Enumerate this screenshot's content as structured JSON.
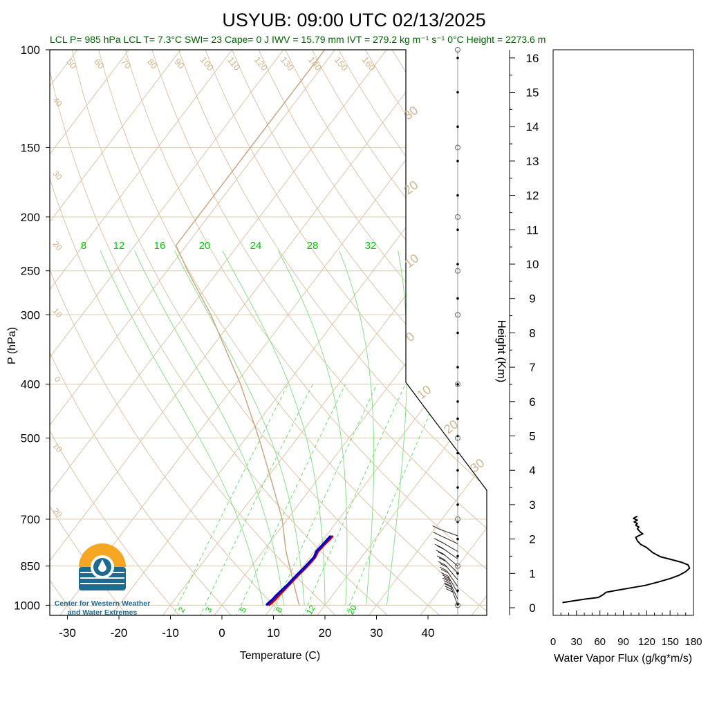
{
  "title": "USYUB: 09:00 UTC 02/13/2025",
  "info_line": "LCL P= 985 hPa  LCL T= 7.3°C  SWI= 23  Cape= 0 J  IWV = 15.79 mm  IVT = 279.2 kg m⁻¹ s⁻¹  0°C Height = 2273.6 m",
  "colors": {
    "info_text": "#006400",
    "dry_adiabat": "#d2b48c",
    "mixing_ratio": "#00cc00",
    "temperature": "#cc0000",
    "dewpoint": "#0000cc",
    "parcel": "#c8a882",
    "frame": "#000000"
  },
  "logo": {
    "line1": "Center for Western Weather",
    "line2": "and Water Extremes",
    "text_color": "#1f6b8f",
    "sun_color": "#f5a623",
    "water_color": "#1f6b8f"
  },
  "chart_data": [
    {
      "type": "skew-t",
      "xlabel": "Temperature (C)",
      "ylabel": "P (hPa)",
      "xlim": [
        -35,
        50
      ],
      "ylim_pressure": [
        1050,
        100
      ],
      "y_log_scale": true,
      "x_ticks": [
        -30,
        -20,
        -10,
        0,
        10,
        20,
        30,
        40
      ],
      "pressure_levels": [
        100,
        150,
        200,
        250,
        300,
        400,
        500,
        700,
        850,
        1000
      ],
      "height_axis": {
        "label": "Height (Km)",
        "ticks": [
          0,
          1,
          2,
          3,
          4,
          5,
          6,
          7,
          8,
          9,
          10,
          11,
          12,
          13,
          14,
          15,
          16
        ]
      },
      "dry_adiabat_labels_top": [
        "50",
        "60",
        "70",
        "80",
        "90",
        "100",
        "110",
        "120",
        "130",
        "140",
        "150",
        "160"
      ],
      "dry_adiabat_labels_left": [
        "40",
        "30",
        "20",
        "10",
        "0",
        "10",
        "20"
      ],
      "isotherm_labels_right": [
        "30",
        "20",
        "10",
        "0",
        "10",
        "20",
        "30"
      ],
      "mixing_ratio_labels_top": [
        "8",
        "12",
        "16",
        "20",
        "24",
        "28",
        "32"
      ],
      "mixing_ratio_labels_bottom": [
        "2",
        "3",
        "5",
        "8",
        "12",
        "20"
      ],
      "temperature_profile": {
        "name": "Temperature",
        "pressure": [
          1000,
          990,
          975,
          960,
          940,
          920,
          900,
          880,
          860,
          840,
          820,
          800,
          780,
          760,
          750
        ],
        "values": [
          9.0,
          9.3,
          9.5,
          9.6,
          9.8,
          10.0,
          10.2,
          10.4,
          10.7,
          10.9,
          11.0,
          10.7,
          10.9,
          11.2,
          11.3
        ]
      },
      "dewpoint_profile": {
        "name": "Dewpoint",
        "pressure": [
          1000,
          990,
          975,
          960,
          940,
          920,
          900,
          880,
          860,
          840,
          820,
          800,
          780,
          760,
          750
        ],
        "values": [
          8.6,
          8.7,
          9.0,
          9.1,
          9.4,
          9.7,
          9.9,
          10.1,
          10.4,
          10.6,
          10.8,
          10.4,
          10.6,
          10.8,
          10.9
        ]
      },
      "parcel_path": {
        "name": "Parcel",
        "pressure": [
          1000,
          900,
          800,
          700,
          600,
          500,
          400,
          300,
          250,
          225,
          200,
          150,
          100
        ],
        "values": [
          15.0,
          10.0,
          4.5,
          -1.0,
          -8.5,
          -17.5,
          -29.0,
          -45.0,
          -56.0,
          -62.0,
          -62.0,
          -62.0,
          -62.0
        ]
      },
      "wind_barbs": {
        "pressure": [
          1000,
          975,
          950,
          925,
          900,
          875,
          850,
          825,
          800,
          775,
          750
        ],
        "speed_kt": [
          25,
          25,
          25,
          20,
          20,
          20,
          15,
          15,
          15,
          10,
          10
        ],
        "direction_deg": [
          200,
          205,
          210,
          215,
          220,
          225,
          230,
          235,
          240,
          245,
          250
        ]
      },
      "height_markers_km": [
        0.1,
        0.5,
        1.0,
        1.5,
        2.0,
        2.5,
        3.0,
        3.5,
        4.0,
        4.5,
        5.0,
        5.5,
        6.0,
        6.5,
        7.0,
        8.0,
        9.0,
        10.0,
        11.0,
        12.0,
        13.0,
        14.0,
        15.0,
        16.0
      ]
    },
    {
      "type": "line",
      "xlabel": "Water Vapor Flux (g/kg*m/s)",
      "ylabel": "",
      "xlim": [
        0,
        180
      ],
      "ylim": [
        -0.2,
        16.4
      ],
      "x_ticks": [
        0,
        30,
        60,
        90,
        120,
        150,
        180
      ],
      "series": [
        {
          "x": [
            12,
            40,
            58,
            64,
            68,
            80,
            100,
            118,
            135,
            150,
            162,
            170,
            175,
            173,
            165,
            152,
            138,
            128,
            120,
            112,
            108,
            106,
            110,
            115,
            112,
            108,
            110,
            106,
            108,
            104,
            108,
            103,
            106,
            108
          ],
          "y": [
            0.15,
            0.25,
            0.3,
            0.38,
            0.45,
            0.5,
            0.58,
            0.65,
            0.75,
            0.85,
            0.95,
            1.05,
            1.15,
            1.25,
            1.32,
            1.4,
            1.48,
            1.6,
            1.75,
            1.85,
            1.95,
            2.05,
            2.1,
            2.15,
            2.2,
            2.3,
            2.35,
            2.4,
            2.45,
            2.5,
            2.55,
            2.6,
            2.64,
            2.66
          ]
        }
      ]
    }
  ]
}
